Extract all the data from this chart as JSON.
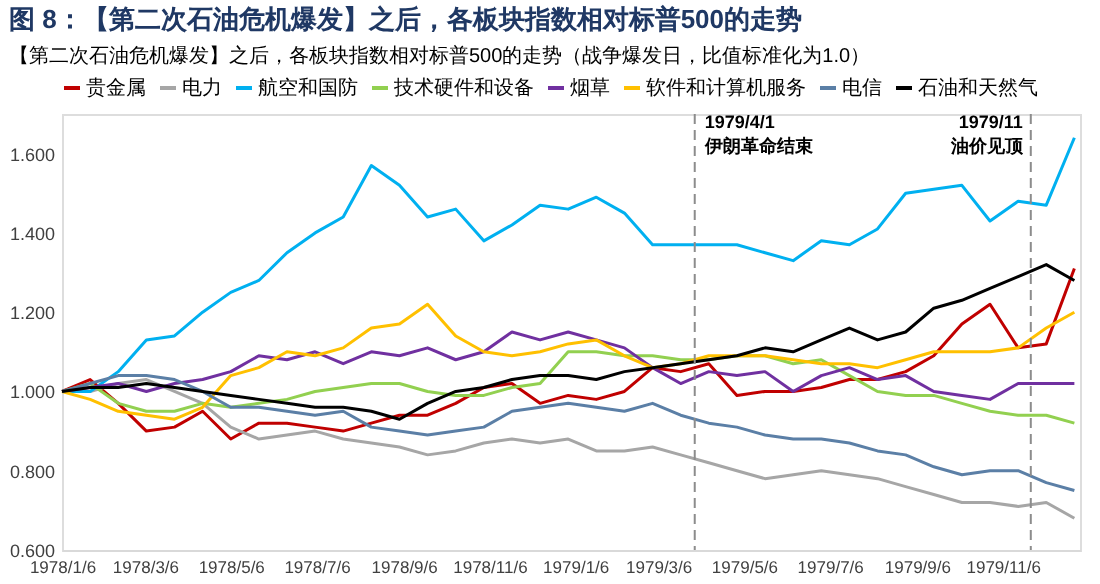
{
  "chart_data": {
    "type": "line",
    "title": "图 8：【第二次石油危机爆发】之后，各板块指数相对标普500的走势",
    "subtitle": "【第二次石油危机爆发】之后，各板块指数相对标普500的走势（战争爆发日，比值标准化为1.0）",
    "x": [
      "1978-01-06",
      "1978-01-26",
      "1978-02-15",
      "1978-03-07",
      "1978-03-27",
      "1978-04-16",
      "1978-05-06",
      "1978-05-26",
      "1978-06-15",
      "1978-07-05",
      "1978-07-25",
      "1978-08-14",
      "1978-09-03",
      "1978-09-23",
      "1978-10-13",
      "1978-11-02",
      "1978-11-22",
      "1978-12-12",
      "1979-01-01",
      "1979-01-21",
      "1979-02-10",
      "1979-03-02",
      "1979-03-22",
      "1979-04-11",
      "1979-05-01",
      "1979-05-21",
      "1979-06-10",
      "1979-06-30",
      "1979-07-20",
      "1979-08-09",
      "1979-08-29",
      "1979-09-18",
      "1979-10-08",
      "1979-10-28",
      "1979-11-17",
      "1979-12-07",
      "1979-12-27"
    ],
    "series": [
      {
        "name": "贵金属",
        "color": "#c00000",
        "values": [
          1.0,
          1.03,
          0.97,
          0.9,
          0.91,
          0.95,
          0.88,
          0.92,
          0.92,
          0.91,
          0.9,
          0.92,
          0.94,
          0.94,
          0.97,
          1.01,
          1.02,
          0.97,
          0.99,
          0.98,
          1.0,
          1.06,
          1.05,
          1.07,
          0.99,
          1.0,
          1.0,
          1.01,
          1.03,
          1.03,
          1.05,
          1.09,
          1.17,
          1.22,
          1.11,
          1.12,
          1.31
        ]
      },
      {
        "name": "电力",
        "color": "#a6a6a6",
        "values": [
          1.0,
          1.0,
          1.02,
          1.03,
          1.0,
          0.97,
          0.91,
          0.88,
          0.89,
          0.9,
          0.88,
          0.87,
          0.86,
          0.84,
          0.85,
          0.87,
          0.88,
          0.87,
          0.88,
          0.85,
          0.85,
          0.86,
          0.84,
          0.82,
          0.8,
          0.78,
          0.79,
          0.8,
          0.79,
          0.78,
          0.76,
          0.74,
          0.72,
          0.72,
          0.71,
          0.72,
          0.68
        ]
      },
      {
        "name": "航空和国防",
        "color": "#00b0f0",
        "values": [
          1.0,
          1.0,
          1.05,
          1.13,
          1.14,
          1.2,
          1.25,
          1.28,
          1.35,
          1.4,
          1.44,
          1.57,
          1.52,
          1.44,
          1.46,
          1.38,
          1.42,
          1.47,
          1.46,
          1.49,
          1.45,
          1.37,
          1.37,
          1.37,
          1.37,
          1.35,
          1.33,
          1.38,
          1.37,
          1.41,
          1.5,
          1.51,
          1.52,
          1.43,
          1.48,
          1.47,
          1.64
        ]
      },
      {
        "name": "技术硬件和设备",
        "color": "#92d050",
        "values": [
          1.0,
          1.02,
          0.97,
          0.95,
          0.95,
          0.97,
          0.96,
          0.97,
          0.98,
          1.0,
          1.01,
          1.02,
          1.02,
          1.0,
          0.99,
          0.99,
          1.01,
          1.02,
          1.1,
          1.1,
          1.09,
          1.09,
          1.08,
          1.08,
          1.09,
          1.09,
          1.07,
          1.08,
          1.04,
          1.0,
          0.99,
          0.99,
          0.97,
          0.95,
          0.94,
          0.94,
          0.92
        ]
      },
      {
        "name": "烟草",
        "color": "#7030a0",
        "values": [
          1.0,
          1.01,
          1.02,
          1.0,
          1.02,
          1.03,
          1.05,
          1.09,
          1.08,
          1.1,
          1.07,
          1.1,
          1.09,
          1.11,
          1.08,
          1.1,
          1.15,
          1.13,
          1.15,
          1.13,
          1.11,
          1.06,
          1.02,
          1.05,
          1.04,
          1.05,
          1.0,
          1.04,
          1.06,
          1.03,
          1.04,
          1.0,
          0.99,
          0.98,
          1.02,
          1.02,
          1.02
        ]
      },
      {
        "name": "软件和计算机服务",
        "color": "#ffc000",
        "values": [
          1.0,
          0.98,
          0.95,
          0.94,
          0.93,
          0.96,
          1.04,
          1.06,
          1.1,
          1.09,
          1.11,
          1.16,
          1.17,
          1.22,
          1.14,
          1.1,
          1.09,
          1.1,
          1.12,
          1.13,
          1.09,
          1.06,
          1.07,
          1.09,
          1.09,
          1.09,
          1.08,
          1.07,
          1.07,
          1.06,
          1.08,
          1.1,
          1.1,
          1.1,
          1.11,
          1.16,
          1.2
        ]
      },
      {
        "name": "电信",
        "color": "#5b7fa6",
        "values": [
          1.0,
          1.02,
          1.04,
          1.04,
          1.03,
          1.0,
          0.96,
          0.96,
          0.95,
          0.94,
          0.95,
          0.91,
          0.9,
          0.89,
          0.9,
          0.91,
          0.95,
          0.96,
          0.97,
          0.96,
          0.95,
          0.97,
          0.94,
          0.92,
          0.91,
          0.89,
          0.88,
          0.88,
          0.87,
          0.85,
          0.84,
          0.81,
          0.79,
          0.8,
          0.8,
          0.77,
          0.75
        ]
      },
      {
        "name": "石油和天然气",
        "color": "#000000",
        "values": [
          1.0,
          1.01,
          1.01,
          1.02,
          1.01,
          1.0,
          0.99,
          0.98,
          0.97,
          0.96,
          0.96,
          0.95,
          0.93,
          0.97,
          1.0,
          1.01,
          1.03,
          1.04,
          1.04,
          1.03,
          1.05,
          1.06,
          1.07,
          1.08,
          1.09,
          1.11,
          1.1,
          1.13,
          1.16,
          1.13,
          1.15,
          1.21,
          1.23,
          1.26,
          1.29,
          1.32,
          1.28
        ]
      }
    ],
    "xlim": [
      "1978-01-06",
      "1979-12-31"
    ],
    "xticks": [
      {
        "value": "1978-01-06",
        "label": "1978/1/6"
      },
      {
        "value": "1978-03-06",
        "label": "1978/3/6"
      },
      {
        "value": "1978-05-06",
        "label": "1978/5/6"
      },
      {
        "value": "1978-07-06",
        "label": "1978/7/6"
      },
      {
        "value": "1978-09-06",
        "label": "1978/9/6"
      },
      {
        "value": "1978-11-06",
        "label": "1978/11/6"
      },
      {
        "value": "1979-01-06",
        "label": "1979/1/6"
      },
      {
        "value": "1979-03-06",
        "label": "1979/3/6"
      },
      {
        "value": "1979-05-06",
        "label": "1979/5/6"
      },
      {
        "value": "1979-07-06",
        "label": "1979/7/6"
      },
      {
        "value": "1979-09-06",
        "label": "1979/9/6"
      },
      {
        "value": "1979-11-06",
        "label": "1979/11/6"
      }
    ],
    "ylim": [
      0.6,
      1.7
    ],
    "yticks": [
      {
        "value": 0.6,
        "label": "0.600"
      },
      {
        "value": 0.8,
        "label": "0.800"
      },
      {
        "value": 1.0,
        "label": "1.000"
      },
      {
        "value": 1.2,
        "label": "1.200"
      },
      {
        "value": 1.4,
        "label": "1.400"
      },
      {
        "value": 1.6,
        "label": "1.600"
      }
    ],
    "ref_lines": [
      {
        "axis": "x",
        "value": "1979-04-01",
        "label": "1979/4/1\n伊朗革命结束",
        "color": "#8c8c8c",
        "line_style": "dashed"
      },
      {
        "axis": "x",
        "value": "1979-11-26",
        "label": "1979/11\n油价见顶",
        "color": "#8c8c8c",
        "line_style": "dashed"
      }
    ],
    "legend": "top",
    "grid": false,
    "marker": "none",
    "line_style": "solid"
  }
}
